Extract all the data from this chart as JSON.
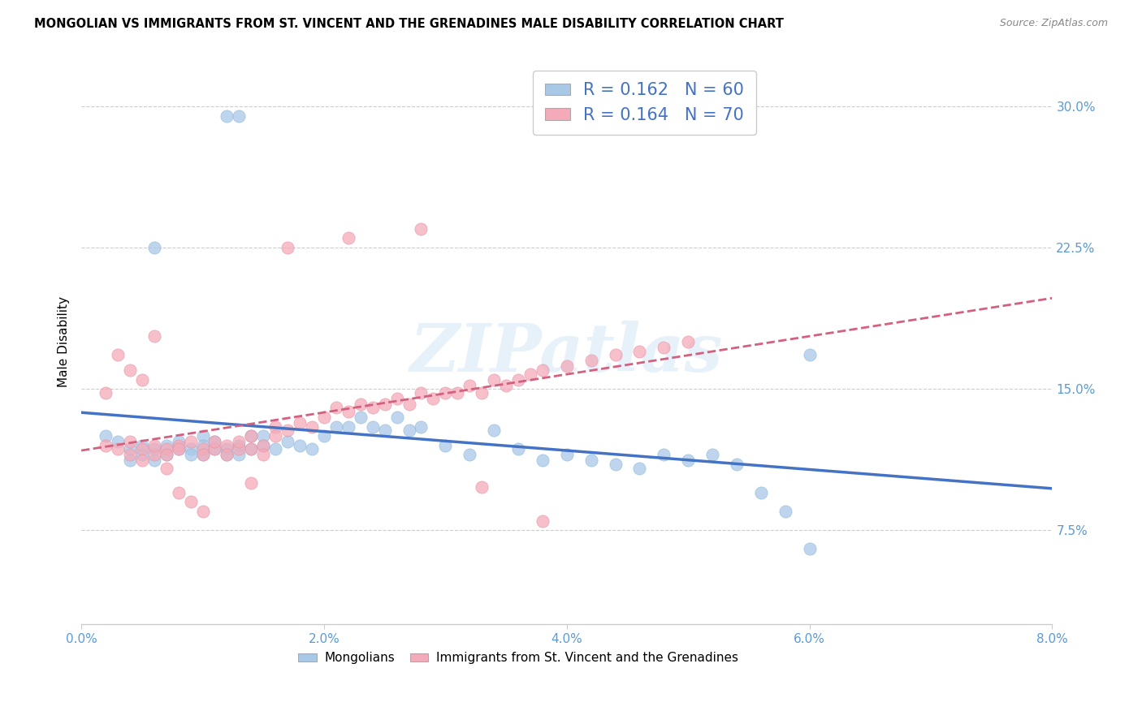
{
  "title": "MONGOLIAN VS IMMIGRANTS FROM ST. VINCENT AND THE GRENADINES MALE DISABILITY CORRELATION CHART",
  "source": "Source: ZipAtlas.com",
  "ylabel": "Male Disability",
  "x_ticks": [
    "0.0%",
    "2.0%",
    "4.0%",
    "6.0%",
    "8.0%"
  ],
  "x_tick_vals": [
    0.0,
    0.02,
    0.04,
    0.06,
    0.08
  ],
  "y_ticks": [
    "7.5%",
    "15.0%",
    "22.5%",
    "30.0%"
  ],
  "y_tick_vals": [
    0.075,
    0.15,
    0.225,
    0.3
  ],
  "xlim": [
    0.0,
    0.08
  ],
  "ylim": [
    0.025,
    0.325
  ],
  "blue_R": "0.162",
  "blue_N": "60",
  "pink_R": "0.164",
  "pink_N": "70",
  "blue_color": "#a8c8e8",
  "pink_color": "#f4aab8",
  "trend_blue": "#4472c4",
  "trend_pink": "#d46080",
  "watermark": "ZIPatlas",
  "legend_labels": [
    "Mongolians",
    "Immigrants from St. Vincent and the Grenadines"
  ],
  "blue_scatter_x": [
    0.002,
    0.003,
    0.004,
    0.004,
    0.005,
    0.005,
    0.006,
    0.006,
    0.007,
    0.007,
    0.008,
    0.008,
    0.009,
    0.009,
    0.01,
    0.01,
    0.01,
    0.011,
    0.011,
    0.012,
    0.012,
    0.013,
    0.013,
    0.014,
    0.014,
    0.015,
    0.015,
    0.016,
    0.017,
    0.018,
    0.019,
    0.02,
    0.021,
    0.022,
    0.023,
    0.024,
    0.025,
    0.026,
    0.027,
    0.028,
    0.03,
    0.032,
    0.034,
    0.036,
    0.038,
    0.04,
    0.042,
    0.044,
    0.046,
    0.048,
    0.05,
    0.052,
    0.054,
    0.056,
    0.058,
    0.06,
    0.012,
    0.013,
    0.006,
    0.06
  ],
  "blue_scatter_y": [
    0.125,
    0.122,
    0.118,
    0.112,
    0.115,
    0.12,
    0.118,
    0.112,
    0.115,
    0.12,
    0.118,
    0.122,
    0.118,
    0.115,
    0.125,
    0.12,
    0.115,
    0.118,
    0.122,
    0.118,
    0.115,
    0.12,
    0.115,
    0.125,
    0.118,
    0.125,
    0.12,
    0.118,
    0.122,
    0.12,
    0.118,
    0.125,
    0.13,
    0.13,
    0.135,
    0.13,
    0.128,
    0.135,
    0.128,
    0.13,
    0.12,
    0.115,
    0.128,
    0.118,
    0.112,
    0.115,
    0.112,
    0.11,
    0.108,
    0.115,
    0.112,
    0.115,
    0.11,
    0.095,
    0.085,
    0.065,
    0.295,
    0.295,
    0.225,
    0.168
  ],
  "pink_scatter_x": [
    0.002,
    0.003,
    0.004,
    0.004,
    0.005,
    0.005,
    0.006,
    0.006,
    0.007,
    0.007,
    0.008,
    0.008,
    0.009,
    0.01,
    0.01,
    0.011,
    0.011,
    0.012,
    0.012,
    0.013,
    0.013,
    0.014,
    0.014,
    0.015,
    0.015,
    0.016,
    0.016,
    0.017,
    0.018,
    0.019,
    0.02,
    0.021,
    0.022,
    0.023,
    0.024,
    0.025,
    0.026,
    0.027,
    0.028,
    0.029,
    0.03,
    0.031,
    0.032,
    0.033,
    0.034,
    0.035,
    0.036,
    0.037,
    0.038,
    0.04,
    0.042,
    0.044,
    0.046,
    0.048,
    0.05,
    0.002,
    0.003,
    0.004,
    0.005,
    0.006,
    0.007,
    0.008,
    0.009,
    0.01,
    0.014,
    0.017,
    0.022,
    0.028,
    0.033,
    0.038
  ],
  "pink_scatter_y": [
    0.12,
    0.118,
    0.122,
    0.115,
    0.118,
    0.112,
    0.115,
    0.12,
    0.118,
    0.115,
    0.12,
    0.118,
    0.122,
    0.118,
    0.115,
    0.118,
    0.122,
    0.12,
    0.115,
    0.118,
    0.122,
    0.118,
    0.125,
    0.12,
    0.115,
    0.13,
    0.125,
    0.128,
    0.132,
    0.13,
    0.135,
    0.14,
    0.138,
    0.142,
    0.14,
    0.142,
    0.145,
    0.142,
    0.148,
    0.145,
    0.148,
    0.148,
    0.152,
    0.148,
    0.155,
    0.152,
    0.155,
    0.158,
    0.16,
    0.162,
    0.165,
    0.168,
    0.17,
    0.172,
    0.175,
    0.148,
    0.168,
    0.16,
    0.155,
    0.178,
    0.108,
    0.095,
    0.09,
    0.085,
    0.1,
    0.225,
    0.23,
    0.235,
    0.098,
    0.08
  ]
}
